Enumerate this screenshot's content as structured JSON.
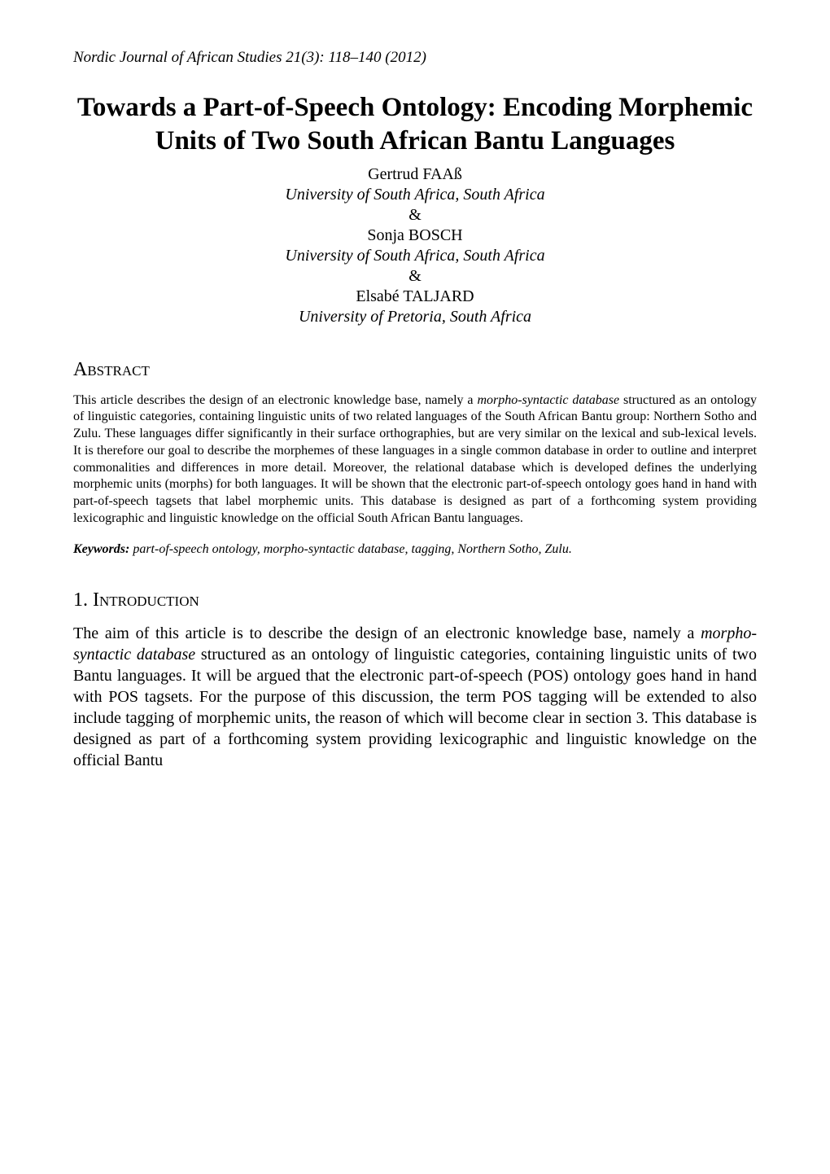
{
  "journal_header": "Nordic Journal of African Studies 21(3): 118–140 (2012)",
  "title": "Towards a Part-of-Speech Ontology: Encoding Morphemic Units of Two South African Bantu Languages",
  "authors": [
    {
      "name": "Gertrud FAAß",
      "affiliation": "University of South Africa, South Africa"
    },
    {
      "name": "Sonja BOSCH",
      "affiliation": "University of South Africa, South Africa"
    },
    {
      "name": "Elsabé TALJARD",
      "affiliation": "University of Pretoria, South Africa"
    }
  ],
  "author_separator": "&",
  "sections": {
    "abstract": {
      "heading": "Abstract",
      "text": "This article describes the design of an electronic knowledge base, namely a morpho-syntactic database structured as an ontology of linguistic categories, containing linguistic units of two related languages of the South African Bantu group: Northern Sotho and Zulu. These languages differ significantly in their surface orthographies, but are very similar on the lexical and sub-lexical levels. It is therefore our goal to describe the morphemes of these languages in a single common database in order to outline and interpret commonalities and differences in more detail. Moreover, the relational database which is developed defines the underlying morphemic units (morphs) for both languages. It will be shown that the electronic part-of-speech ontology goes hand in hand with part-of-speech tagsets that label morphemic units. This database is designed as part of a forthcoming system providing lexicographic and linguistic knowledge on the official South African Bantu languages."
    },
    "keywords": {
      "label": "Keywords:",
      "text": "part-of-speech ontology, morpho-syntactic database, tagging, Northern Sotho, Zulu."
    },
    "introduction": {
      "number": "1.",
      "heading": "Introduction",
      "text": "The aim of this article is to describe the design of an electronic knowledge base, namely a morpho-syntactic database structured as an ontology of linguistic categories, containing linguistic units of two Bantu languages. It will be argued that the electronic part-of-speech (POS) ontology goes hand in hand with POS tagsets. For the purpose of this discussion, the term POS tagging will be extended to also include tagging of morphemic units, the reason of which will become clear in section 3. This database is designed as part of a forthcoming system providing lexicographic and linguistic knowledge on the official Bantu"
    }
  }
}
